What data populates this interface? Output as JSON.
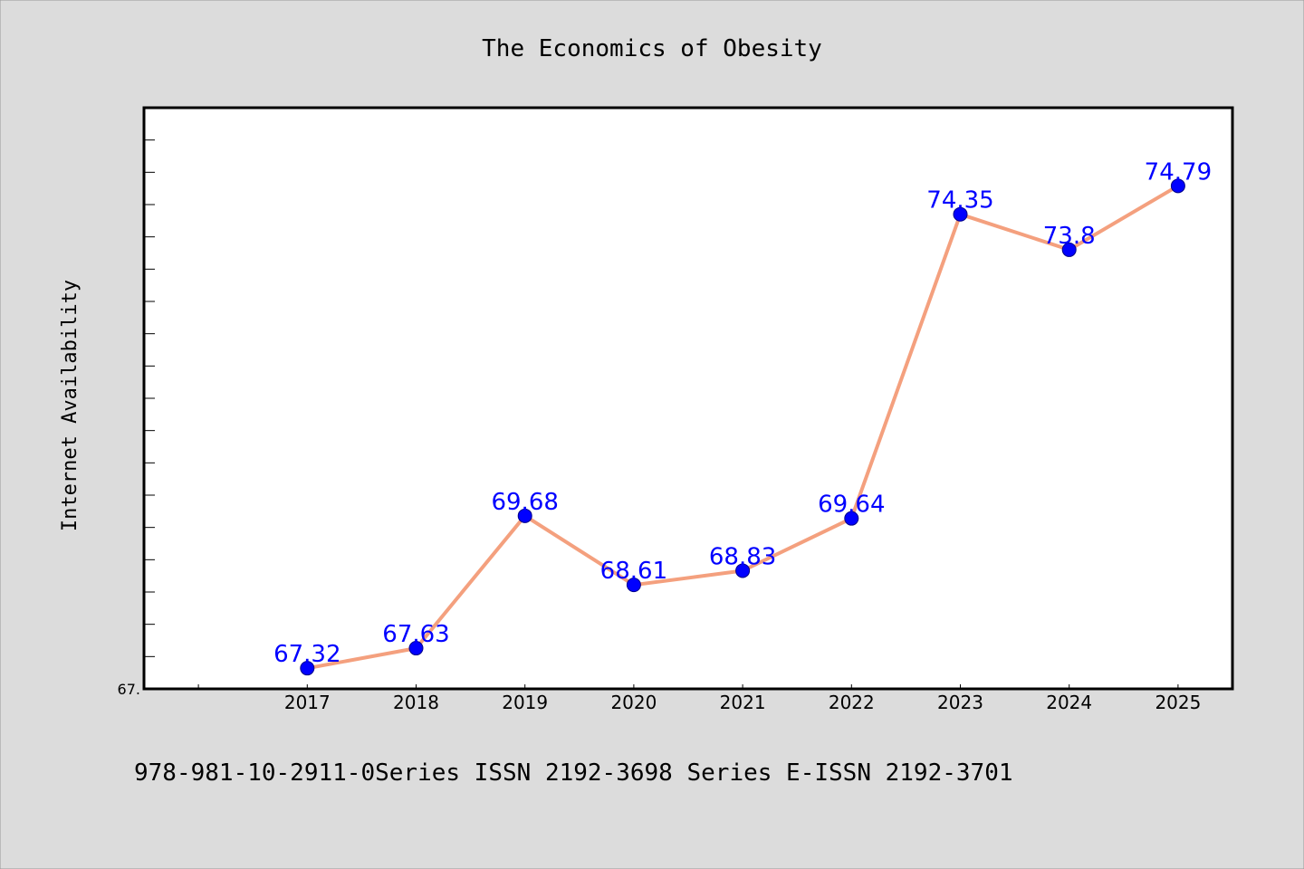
{
  "chart_data": {
    "type": "line",
    "title": "The Economics of Obesity",
    "ylabel": "Internet Availability",
    "xlabel": "",
    "categories": [
      "2017",
      "2018",
      "2019",
      "2020",
      "2021",
      "2022",
      "2023",
      "2024",
      "2025"
    ],
    "series": [
      {
        "values": [
          67.32,
          67.63,
          69.68,
          68.61,
          68.83,
          69.64,
          74.35,
          73.8,
          74.79
        ],
        "data_labels": [
          "67.32",
          "67.63",
          "69.68",
          "68.61",
          "68.83",
          "69.64",
          "74.35",
          "73.8",
          "74.79"
        ]
      }
    ],
    "ylim": [
      67.0,
      76.0
    ],
    "x_domain": [
      0.5,
      10.5
    ],
    "y_tick_label": "67.",
    "grid": false,
    "legend": "none",
    "footer": "978-981-10-2911-0Series ISSN 2192-3698 Series E-ISSN 2192-3701"
  },
  "colors": {
    "figure_background": "#dcdcdc",
    "plot_background": "#ffffff",
    "line": "#f4a07e",
    "marker": "#0000ff",
    "data_label": "#0000ff",
    "axis": "#000000"
  }
}
